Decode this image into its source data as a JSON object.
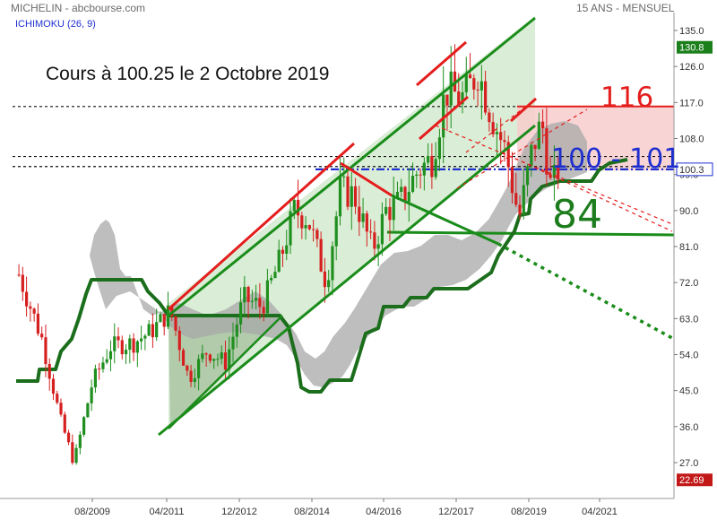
{
  "header": {
    "title": "MICHELIN - abcbourse.com",
    "period": "15 ANS - MENSUEL",
    "indicator": "ICHIMOKU (26, 9)"
  },
  "annotation": {
    "price_note": "Cours à 100.25 le 2 Octobre 2019",
    "level_high": "116",
    "level_mid": "100 - 101",
    "level_low": "84"
  },
  "colors": {
    "candle_up": "#1f8f1f",
    "candle_down": "#d62020",
    "channel": "#1a8c1a",
    "channel_fill": "#d8ecd4",
    "resistance": "#e41d1d",
    "resistance_fill": "#f7cccc",
    "cloud": "#a8a8a8",
    "kijun": "#1b6e1b",
    "current_line": "#1e2fd0",
    "badge_up": "#1b7f1b",
    "badge_down": "#c21818"
  },
  "chart_data": {
    "type": "candlestick",
    "title": "MICHELIN - abcbourse.com",
    "timeframe": "monthly",
    "x_ticks": [
      "08/2009",
      "04/2011",
      "12/2012",
      "08/2014",
      "04/2016",
      "12/2017",
      "08/2019",
      "04/2021"
    ],
    "y_ticks": [
      "135.0",
      "126.0",
      "117.0",
      "108.0",
      "99.0",
      "90.0",
      "81.0",
      "72.0",
      "63.0",
      "54.0",
      "45.0",
      "36.0",
      "27.0"
    ],
    "ylim": [
      22,
      137
    ],
    "last_price": 100.25,
    "price_badges": {
      "high": "130.8",
      "current": "100.3",
      "low": "22.69"
    },
    "horizontal_levels": [
      116,
      103.5,
      101,
      100.3,
      84
    ],
    "zones": [
      {
        "name": "resistance",
        "from": 100,
        "to": 116
      },
      {
        "name": "support",
        "value": 84
      }
    ],
    "monthly_closes": [
      {
        "t": 2008.0,
        "c": 74
      },
      {
        "t": 2008.5,
        "c": 58
      },
      {
        "t": 2008.9,
        "c": 38
      },
      {
        "t": 2009.2,
        "c": 27
      },
      {
        "t": 2009.6,
        "c": 47
      },
      {
        "t": 2010.0,
        "c": 56
      },
      {
        "t": 2010.5,
        "c": 57
      },
      {
        "t": 2010.9,
        "c": 60
      },
      {
        "t": 2011.3,
        "c": 65
      },
      {
        "t": 2011.7,
        "c": 48
      },
      {
        "t": 2012.1,
        "c": 55
      },
      {
        "t": 2012.5,
        "c": 52
      },
      {
        "t": 2012.9,
        "c": 68
      },
      {
        "t": 2013.3,
        "c": 66
      },
      {
        "t": 2013.7,
        "c": 78
      },
      {
        "t": 2014.0,
        "c": 90
      },
      {
        "t": 2014.3,
        "c": 88
      },
      {
        "t": 2014.7,
        "c": 72
      },
      {
        "t": 2015.0,
        "c": 95
      },
      {
        "t": 2015.3,
        "c": 94
      },
      {
        "t": 2015.7,
        "c": 80
      },
      {
        "t": 2016.0,
        "c": 90
      },
      {
        "t": 2016.3,
        "c": 92
      },
      {
        "t": 2016.7,
        "c": 100
      },
      {
        "t": 2017.0,
        "c": 103
      },
      {
        "t": 2017.3,
        "c": 120
      },
      {
        "t": 2017.7,
        "c": 118
      },
      {
        "t": 2018.0,
        "c": 125
      },
      {
        "t": 2018.3,
        "c": 114
      },
      {
        "t": 2018.6,
        "c": 105
      },
      {
        "t": 2018.9,
        "c": 88
      },
      {
        "t": 2019.2,
        "c": 106
      },
      {
        "t": 2019.4,
        "c": 112
      },
      {
        "t": 2019.6,
        "c": 95
      },
      {
        "t": 2019.75,
        "c": 100.25
      }
    ]
  }
}
